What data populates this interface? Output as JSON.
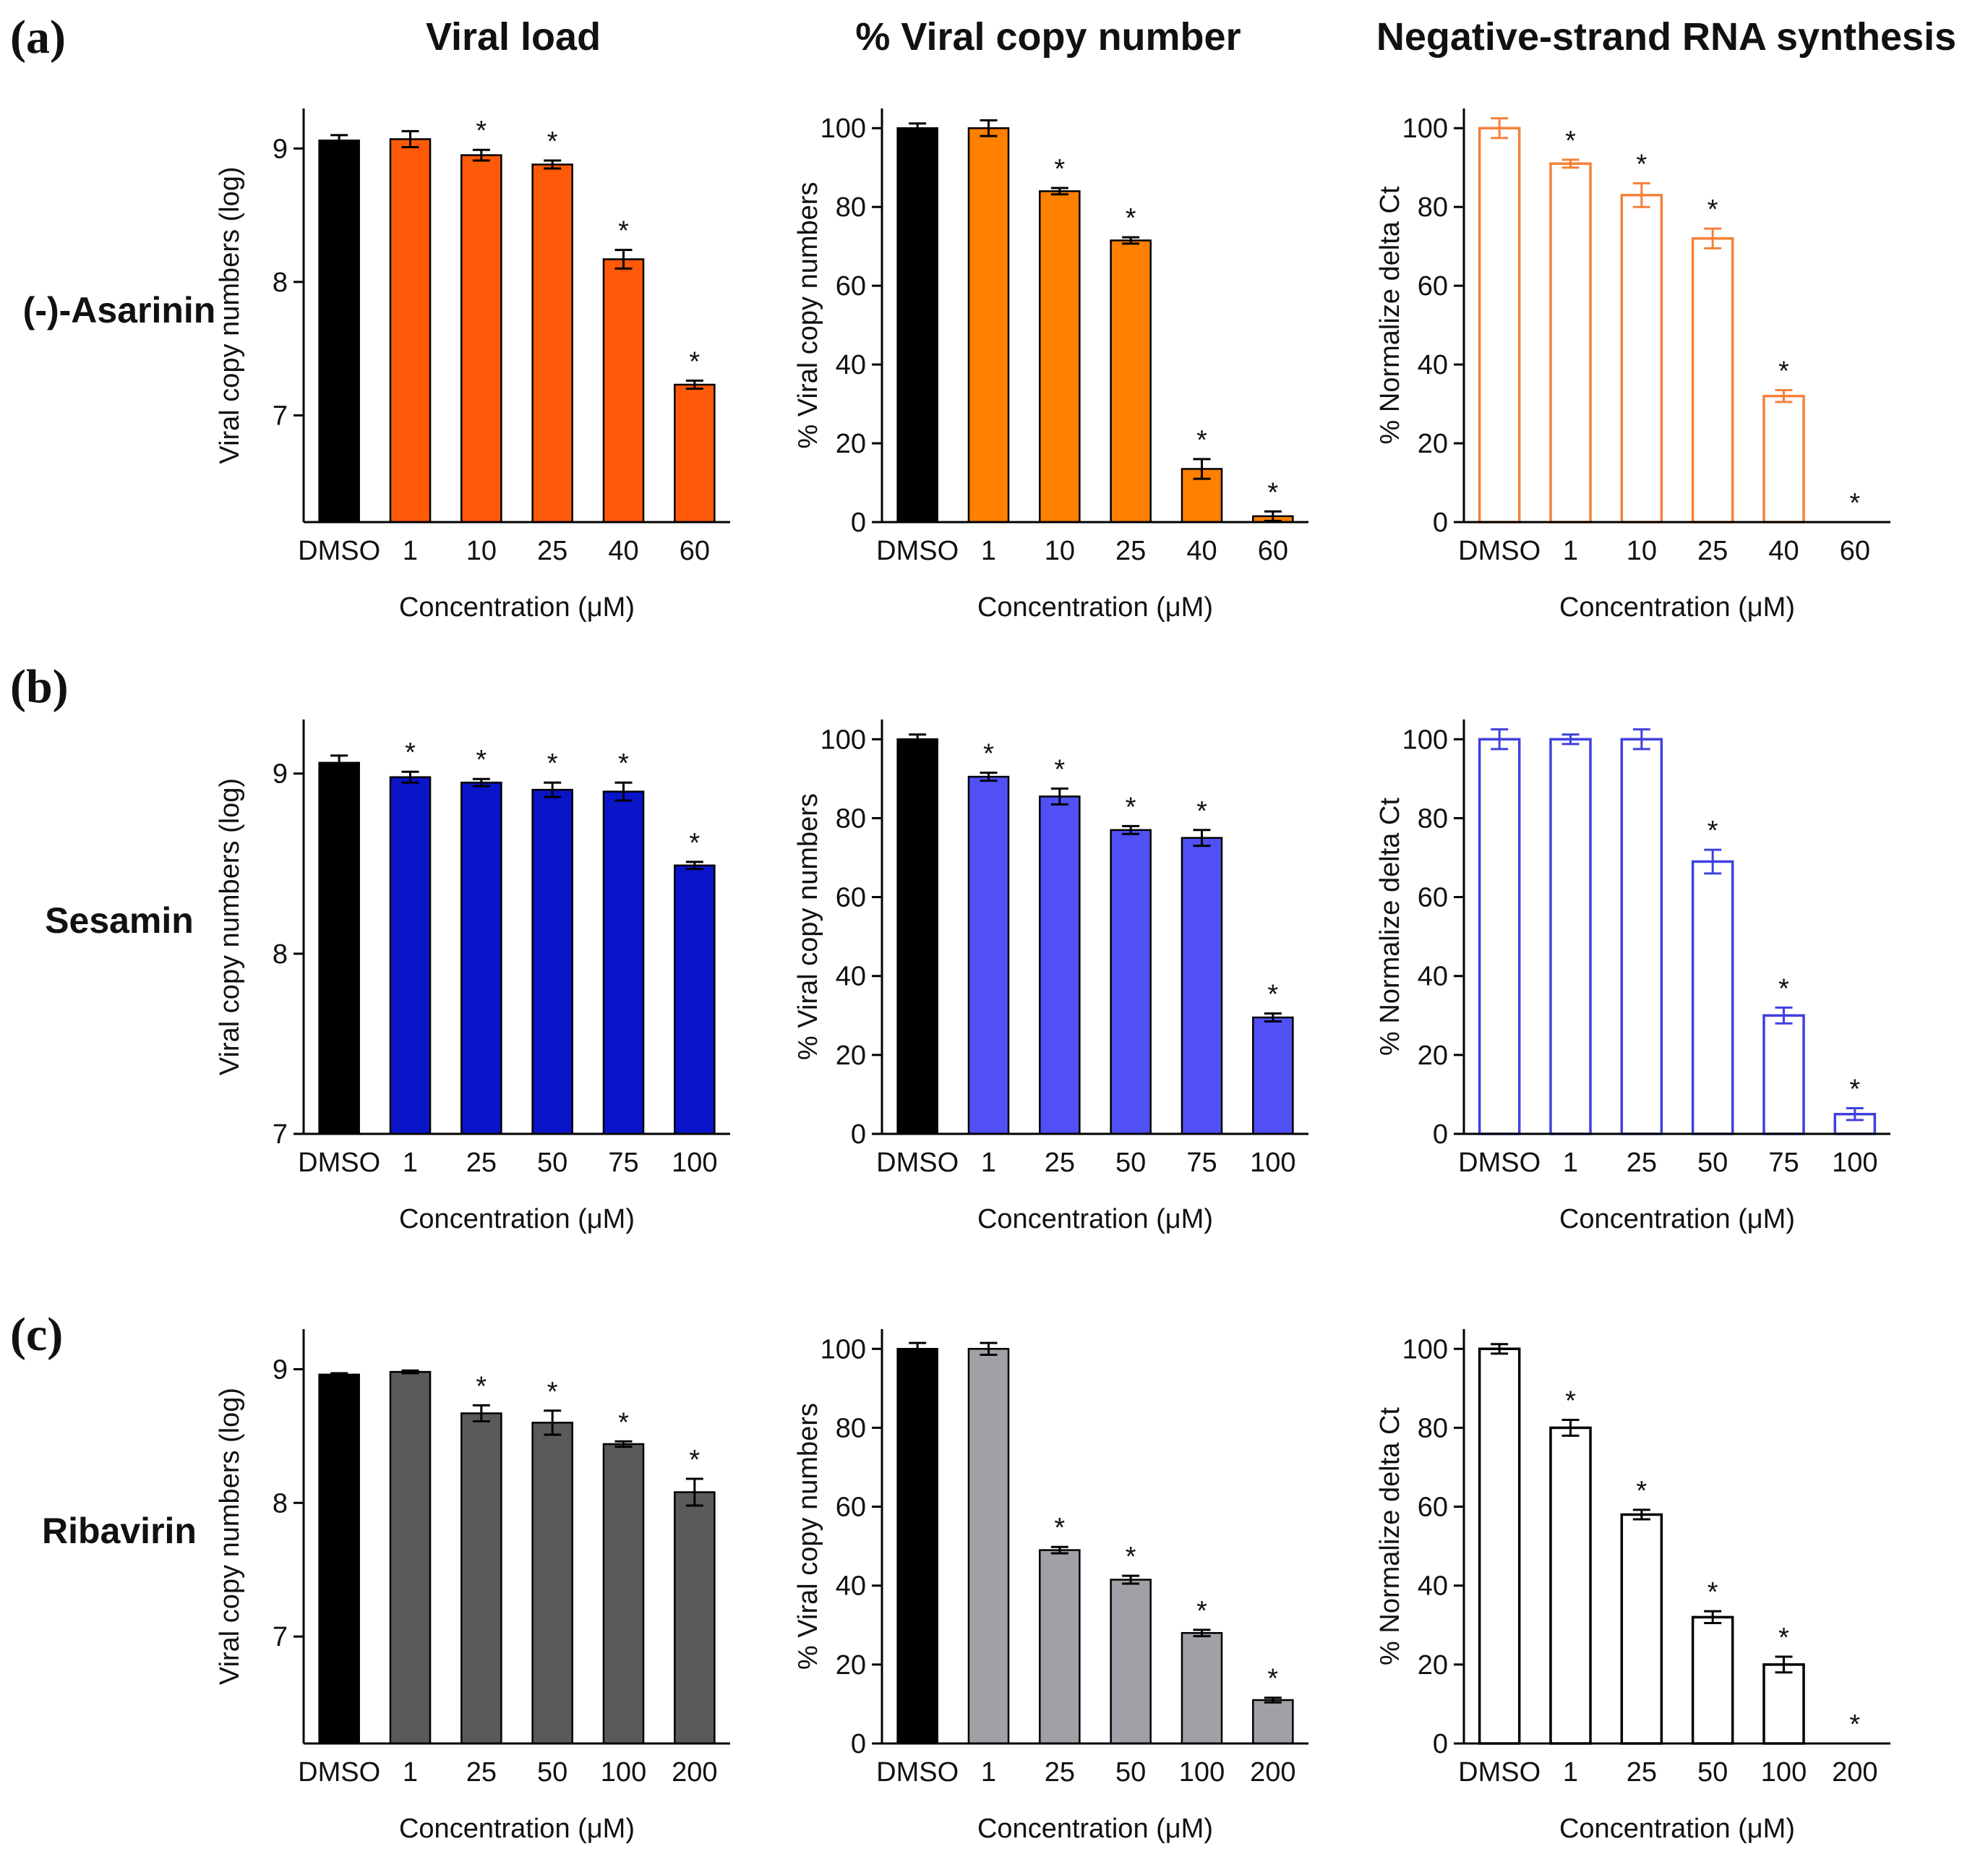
{
  "panel_labels": [
    "(a)",
    "(b)",
    "(c)"
  ],
  "column_titles": [
    "Viral load",
    "% Viral copy number",
    "Negative-strand RNA synthesis"
  ],
  "row_titles": [
    "(-)-Asarinin",
    "Sesamin",
    "Ribavirin"
  ],
  "colors": {
    "dmso": "#000000",
    "asarinin_viral_load": "#ff5a0a",
    "asarinin_pct": "#ff8000",
    "asarinin_neg": "#f5813a",
    "sesamin_viral_load": "#0a14c8",
    "sesamin_pct": "#5050f5",
    "sesamin_neg": "#4040e0",
    "ribavirin_viral_load": "#5a5a5a",
    "ribavirin_pct": "#a0a0a6",
    "ribavirin_neg": "#000000",
    "axis": "#000000"
  },
  "chart_data": [
    {
      "id": "a1",
      "type": "bar",
      "style": "filled",
      "color": "asarinin_viral_load",
      "categories": [
        "DMSO",
        "1",
        "10",
        "25",
        "40",
        "60"
      ],
      "values": [
        9.06,
        9.07,
        8.95,
        8.88,
        8.17,
        7.23
      ],
      "errors": [
        0.04,
        0.06,
        0.04,
        0.03,
        0.07,
        0.03
      ],
      "significant": [
        false,
        false,
        true,
        true,
        true,
        true
      ],
      "xlabel": "Concentration (μM)",
      "ylabel": "Viral copy numbers (log)",
      "ylim": [
        6.2,
        9.3
      ],
      "yticks": [
        7,
        8,
        9
      ]
    },
    {
      "id": "a2",
      "type": "bar",
      "style": "filled",
      "color": "asarinin_pct",
      "categories": [
        "DMSO",
        "1",
        "10",
        "25",
        "40",
        "60"
      ],
      "values": [
        100,
        100,
        84,
        71.5,
        13.5,
        1.5
      ],
      "errors": [
        1.2,
        2,
        0.8,
        0.8,
        2.5,
        1.2
      ],
      "significant": [
        false,
        false,
        true,
        true,
        true,
        true
      ],
      "xlabel": "Concentration (μM)",
      "ylabel": "% Viral copy numbers",
      "ylim": [
        0,
        105
      ],
      "yticks": [
        0,
        20,
        40,
        60,
        80,
        100
      ]
    },
    {
      "id": "a3",
      "type": "bar",
      "style": "outline",
      "color": "asarinin_neg",
      "categories": [
        "DMSO",
        "1",
        "10",
        "25",
        "40",
        "60"
      ],
      "values": [
        100,
        91,
        83,
        72,
        32,
        0
      ],
      "errors": [
        2.5,
        1,
        3,
        2.5,
        1.5,
        0
      ],
      "significant": [
        false,
        true,
        true,
        true,
        true,
        true
      ],
      "xlabel": "Concentration (μM)",
      "ylabel": "% Normalize delta Ct",
      "ylim": [
        0,
        105
      ],
      "yticks": [
        0,
        20,
        40,
        60,
        80,
        100
      ]
    },
    {
      "id": "b1",
      "type": "bar",
      "style": "filled",
      "color": "sesamin_viral_load",
      "categories": [
        "DMSO",
        "1",
        "25",
        "50",
        "75",
        "100"
      ],
      "values": [
        9.06,
        8.98,
        8.95,
        8.91,
        8.9,
        8.49
      ],
      "errors": [
        0.04,
        0.03,
        0.02,
        0.04,
        0.05,
        0.02
      ],
      "significant": [
        false,
        true,
        true,
        true,
        true,
        true
      ],
      "xlabel": "Concentration (μM)",
      "ylabel": "Viral copy numbers (log)",
      "ylim": [
        7,
        9.3
      ],
      "yticks": [
        7,
        8,
        9
      ]
    },
    {
      "id": "b2",
      "type": "bar",
      "style": "filled",
      "color": "sesamin_pct",
      "categories": [
        "DMSO",
        "1",
        "25",
        "50",
        "75",
        "100"
      ],
      "values": [
        100,
        90.5,
        85.5,
        77,
        75,
        29.5
      ],
      "errors": [
        1.2,
        1,
        2,
        1,
        2,
        1
      ],
      "significant": [
        false,
        true,
        true,
        true,
        true,
        true
      ],
      "xlabel": "Concentration (μM)",
      "ylabel": "% Viral copy numbers",
      "ylim": [
        0,
        105
      ],
      "yticks": [
        0,
        20,
        40,
        60,
        80,
        100
      ]
    },
    {
      "id": "b3",
      "type": "bar",
      "style": "outline",
      "color": "sesamin_neg",
      "categories": [
        "DMSO",
        "1",
        "25",
        "50",
        "75",
        "100"
      ],
      "values": [
        100,
        100,
        100,
        69,
        30,
        5
      ],
      "errors": [
        2.5,
        1.2,
        2.5,
        3,
        2,
        1.5
      ],
      "significant": [
        false,
        false,
        false,
        true,
        true,
        true
      ],
      "xlabel": "Concentration (μM)",
      "ylabel": "% Normalize delta Ct",
      "ylim": [
        0,
        105
      ],
      "yticks": [
        0,
        20,
        40,
        60,
        80,
        100
      ]
    },
    {
      "id": "c1",
      "type": "bar",
      "style": "filled",
      "color": "ribavirin_viral_load",
      "categories": [
        "DMSO",
        "1",
        "25",
        "50",
        "100",
        "200"
      ],
      "values": [
        8.96,
        8.98,
        8.67,
        8.6,
        8.44,
        8.08
      ],
      "errors": [
        0.01,
        0.01,
        0.06,
        0.09,
        0.02,
        0.1
      ],
      "significant": [
        false,
        false,
        true,
        true,
        true,
        true
      ],
      "xlabel": "Concentration (μM)",
      "ylabel": "Viral copy numbers (log)",
      "ylim": [
        6.2,
        9.3
      ],
      "yticks": [
        7,
        8,
        9
      ]
    },
    {
      "id": "c2",
      "type": "bar",
      "style": "filled",
      "color": "ribavirin_pct",
      "categories": [
        "DMSO",
        "1",
        "25",
        "50",
        "100",
        "200"
      ],
      "values": [
        100,
        100,
        49,
        41.5,
        28,
        11
      ],
      "errors": [
        1.5,
        1.5,
        0.8,
        1,
        0.8,
        0.6
      ],
      "significant": [
        false,
        false,
        true,
        true,
        true,
        true
      ],
      "xlabel": "Concentration (μM)",
      "ylabel": "% Viral copy numbers",
      "ylim": [
        0,
        105
      ],
      "yticks": [
        0,
        20,
        40,
        60,
        80,
        100
      ]
    },
    {
      "id": "c3",
      "type": "bar",
      "style": "outline",
      "color": "ribavirin_neg",
      "categories": [
        "DMSO",
        "1",
        "25",
        "50",
        "100",
        "200"
      ],
      "values": [
        100,
        80,
        58,
        32,
        20,
        0
      ],
      "errors": [
        1.2,
        2,
        1.2,
        1.5,
        2,
        0
      ],
      "significant": [
        false,
        true,
        true,
        true,
        true,
        true
      ],
      "xlabel": "Concentration (μM)",
      "ylabel": "% Normalize delta Ct",
      "ylim": [
        0,
        105
      ],
      "yticks": [
        0,
        20,
        40,
        60,
        80,
        100
      ]
    }
  ]
}
